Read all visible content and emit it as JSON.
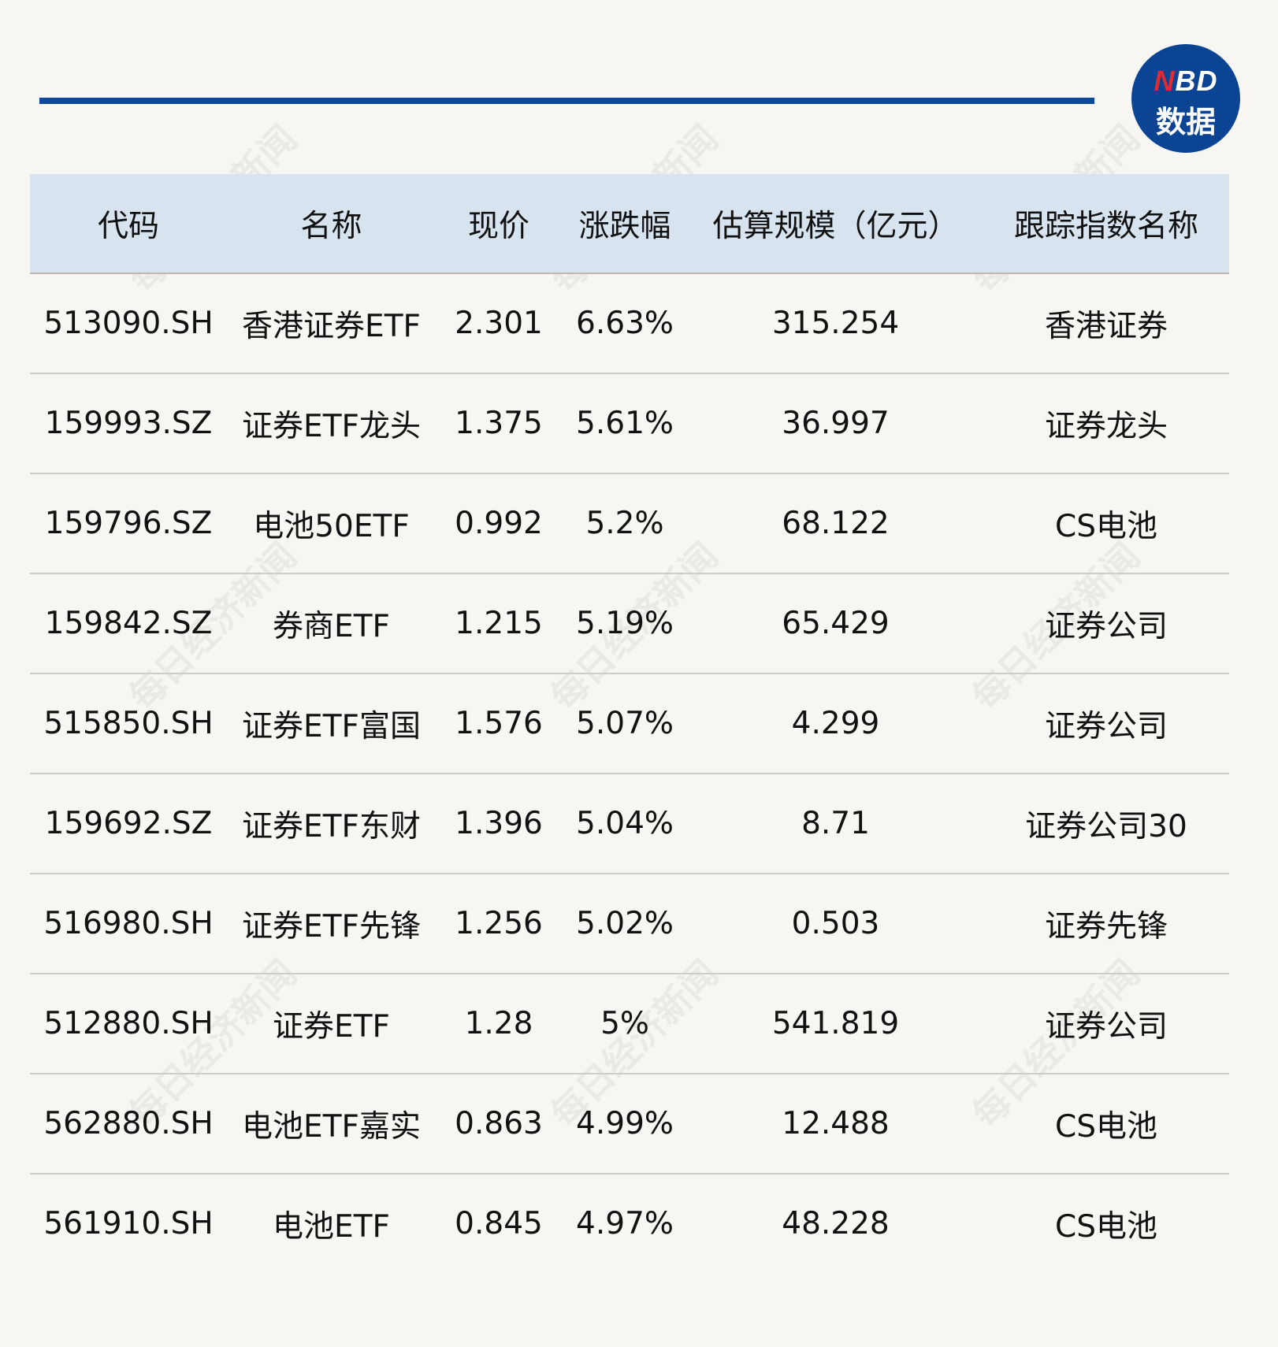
{
  "logo": {
    "brand_n": "N",
    "brand_rest": "BD",
    "subtitle": "数据",
    "colors": {
      "circle": "#0b4493",
      "n": "#e32a33"
    }
  },
  "watermark": "每日经济新闻",
  "table": {
    "headers": [
      "代码",
      "名称",
      "现价",
      "涨跌幅",
      "估算规模（亿元）",
      "跟踪指数名称"
    ],
    "rows": [
      [
        "513090.SH",
        "香港证券ETF",
        "2.301",
        "6.63%",
        "315.254",
        "香港证券"
      ],
      [
        "159993.SZ",
        "证券ETF龙头",
        "1.375",
        "5.61%",
        "36.997",
        "证券龙头"
      ],
      [
        "159796.SZ",
        "电池50ETF",
        "0.992",
        "5.2%",
        "68.122",
        "CS电池"
      ],
      [
        "159842.SZ",
        "券商ETF",
        "1.215",
        "5.19%",
        "65.429",
        "证券公司"
      ],
      [
        "515850.SH",
        "证券ETF富国",
        "1.576",
        "5.07%",
        "4.299",
        "证券公司"
      ],
      [
        "159692.SZ",
        "证券ETF东财",
        "1.396",
        "5.04%",
        "8.71",
        "证券公司30"
      ],
      [
        "516980.SH",
        "证券ETF先锋",
        "1.256",
        "5.02%",
        "0.503",
        "证券先锋"
      ],
      [
        "512880.SH",
        "证券ETF",
        "1.28",
        "5%",
        "541.819",
        "证券公司"
      ],
      [
        "562880.SH",
        "电池ETF嘉实",
        "0.863",
        "4.99%",
        "12.488",
        "CS电池"
      ],
      [
        "561910.SH",
        "电池ETF",
        "0.845",
        "4.97%",
        "48.228",
        "CS电池"
      ]
    ]
  }
}
